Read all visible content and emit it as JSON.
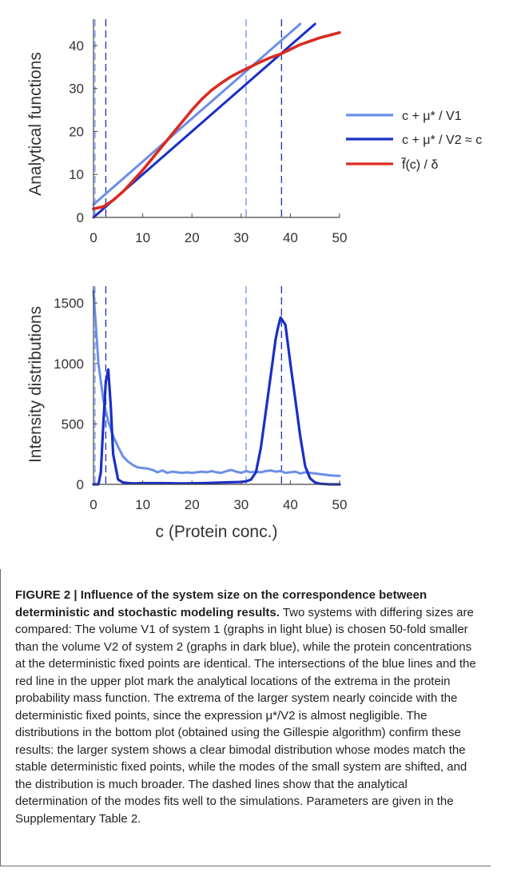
{
  "chart_data": [
    {
      "type": "line",
      "ylabel": "Analytical functions",
      "xlim": [
        0,
        50
      ],
      "ylim": [
        0,
        45
      ],
      "xticks": [
        0,
        10,
        20,
        30,
        40,
        50
      ],
      "yticks": [
        0,
        10,
        20,
        30,
        40
      ],
      "legend_position": "right",
      "series": [
        {
          "name": "c + μ* / V1",
          "color": "#6b8fe6",
          "x": [
            0,
            42
          ],
          "y": [
            3,
            45
          ]
        },
        {
          "name": "c + μ* / V2 ≈ c",
          "color": "#1a2fc4",
          "x": [
            0,
            45
          ],
          "y": [
            0,
            45
          ]
        },
        {
          "name": "f̃(c) / δ",
          "color": "#d92b1f",
          "x": [
            0,
            2,
            4,
            6,
            8,
            10,
            12,
            14,
            16,
            18,
            20,
            22,
            24,
            26,
            28,
            30,
            32,
            34,
            36,
            38,
            40,
            42,
            44,
            46,
            48,
            50
          ],
          "y": [
            2,
            2.5,
            4,
            6,
            8.5,
            11,
            13.8,
            16.6,
            19.4,
            22.2,
            25,
            27.5,
            29.6,
            31.3,
            32.8,
            34,
            35.1,
            36.2,
            37.2,
            38,
            39.1,
            40.2,
            41,
            41.8,
            42.4,
            43
          ]
        }
      ],
      "dashed_vlines": [
        {
          "x": 0.3,
          "color": "#6b8fe6"
        },
        {
          "x": 2.5,
          "color": "#1a2fc4"
        },
        {
          "x": 31,
          "color": "#6b8fe6"
        },
        {
          "x": 38.2,
          "color": "#1a2fc4"
        }
      ]
    },
    {
      "type": "line",
      "xlabel": "c (Protein conc.)",
      "ylabel": "Intensity distributions",
      "xlim": [
        0,
        50
      ],
      "ylim": [
        0,
        1600
      ],
      "xticks": [
        0,
        10,
        20,
        30,
        40,
        50
      ],
      "yticks": [
        0,
        500,
        1000,
        1500
      ],
      "series": [
        {
          "name": "system 1 (V1)",
          "color": "#6b8fe6",
          "x": [
            0,
            1,
            2,
            3,
            4,
            5,
            6,
            7,
            8,
            9,
            10,
            11,
            12,
            13,
            14,
            15,
            16,
            17,
            18,
            19,
            20,
            21,
            22,
            23,
            24,
            25,
            26,
            27,
            28,
            29,
            30,
            31,
            32,
            33,
            34,
            35,
            36,
            37,
            38,
            39,
            40,
            41,
            42,
            43,
            44,
            45,
            46,
            47,
            48,
            49,
            50
          ],
          "y": [
            1600,
            1000,
            700,
            520,
            400,
            310,
            230,
            190,
            160,
            140,
            135,
            130,
            120,
            100,
            115,
            95,
            105,
            100,
            95,
            100,
            95,
            100,
            105,
            100,
            110,
            100,
            95,
            110,
            120,
            105,
            95,
            110,
            100,
            105,
            100,
            110,
            115,
            105,
            110,
            95,
            100,
            105,
            90,
            100,
            95,
            90,
            85,
            80,
            75,
            72,
            70
          ]
        },
        {
          "name": "system 2 (V2)",
          "color": "#1a2fc4",
          "x": [
            0,
            1,
            1.5,
            2,
            2.5,
            3,
            3.5,
            4,
            5,
            6,
            8,
            10,
            14,
            18,
            22,
            26,
            30,
            31,
            32,
            33,
            34,
            35,
            36,
            37,
            37.5,
            38,
            39,
            40,
            41,
            42,
            43,
            44,
            45,
            46,
            48,
            50
          ],
          "y": [
            0,
            0,
            100,
            500,
            850,
            950,
            650,
            250,
            40,
            15,
            8,
            10,
            10,
            8,
            10,
            15,
            20,
            25,
            40,
            100,
            300,
            600,
            900,
            1200,
            1300,
            1380,
            1320,
            1000,
            700,
            400,
            150,
            50,
            15,
            5,
            0,
            0
          ]
        }
      ],
      "dashed_vlines": [
        {
          "x": 0.3,
          "color": "#6b8fe6"
        },
        {
          "x": 2.5,
          "color": "#1a2fc4"
        },
        {
          "x": 31,
          "color": "#6b8fe6"
        },
        {
          "x": 38.2,
          "color": "#1a2fc4"
        }
      ]
    }
  ],
  "caption": {
    "label": "FIGURE 2 | Influence of the system size on the correspondence between deterministic and stochastic modeling results.",
    "text": "Two systems with differing sizes are compared: The volume V1 of system 1 (graphs in light blue) is chosen 50-fold smaller than the volume V2 of system 2 (graphs in dark blue), while the protein concentrations at the deterministic fixed points are identical. The intersections of the blue lines and the red line in the upper plot mark the analytical locations of the extrema in the protein probability mass function. The extrema of the larger system nearly coincide with the deterministic fixed points, since the expression μ*/V2 is almost negligible. The distributions in the bottom plot (obtained using the Gillespie algorithm) confirm these results: the larger system shows a clear bimodal distribution whose modes match the stable deterministic fixed points, while the modes of the small system are shifted, and the distribution is much broader. The dashed lines show that the analytical determination of the modes fits well to the simulations. Parameters are given in the Supplementary Table 2."
  }
}
